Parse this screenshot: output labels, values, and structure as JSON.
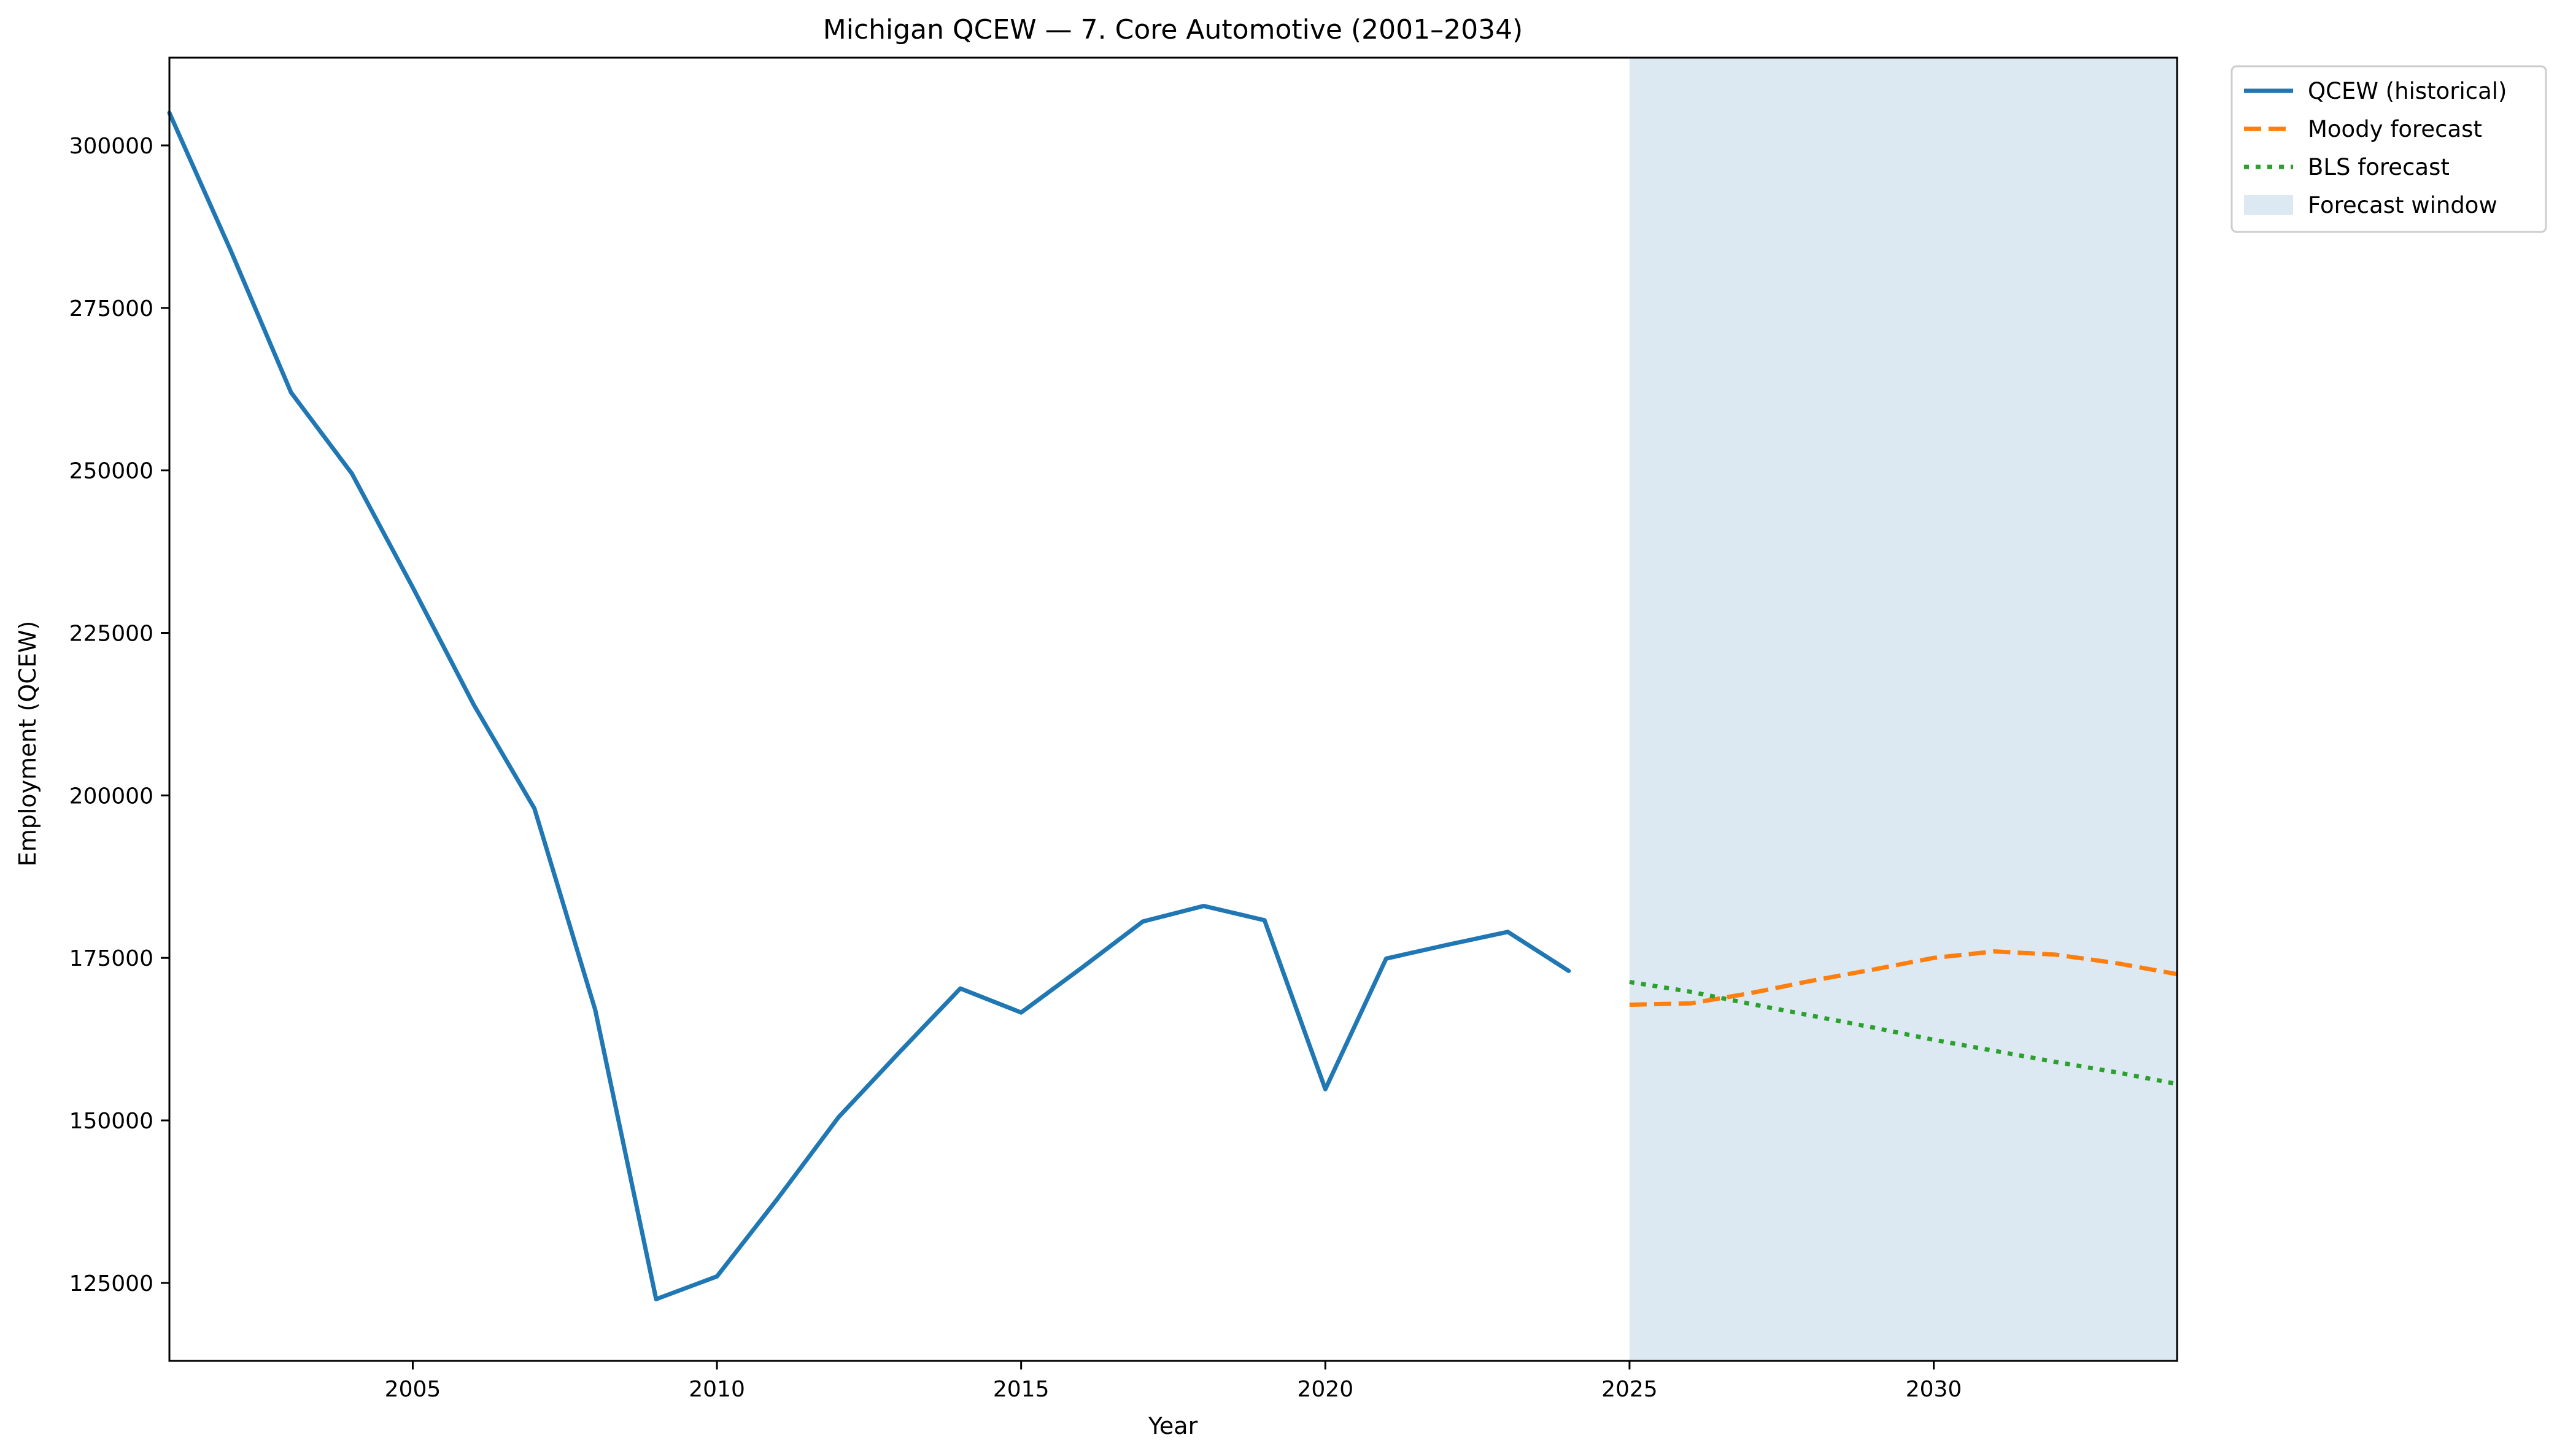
{
  "chart_data": {
    "type": "line",
    "title": "Michigan QCEW — 7. Core Automotive (2001–2034)",
    "xlabel": "Year",
    "ylabel": "Employment (QCEW)",
    "xlim": [
      2001,
      2034
    ],
    "ylim": [
      113000,
      313500
    ],
    "xticks": [
      2005,
      2010,
      2015,
      2020,
      2025,
      2030
    ],
    "yticks": [
      125000,
      150000,
      175000,
      200000,
      225000,
      250000,
      275000,
      300000
    ],
    "grid": false,
    "legend_position": "outside-top-right",
    "forecast_window": {
      "label": "Forecast window",
      "x_range": [
        2025,
        2034
      ],
      "color": "#dce9f2"
    },
    "series": [
      {
        "name": "QCEW (historical)",
        "style": "solid",
        "color": "#1f77b4",
        "x": [
          2001,
          2002,
          2003,
          2004,
          2005,
          2006,
          2007,
          2008,
          2009,
          2010,
          2011,
          2012,
          2013,
          2014,
          2015,
          2016,
          2017,
          2018,
          2019,
          2020,
          2021,
          2022,
          2023,
          2024
        ],
        "values": [
          305000,
          284000,
          262000,
          249500,
          232000,
          214000,
          198000,
          167000,
          122500,
          126000,
          138000,
          150500,
          160500,
          170300,
          166600,
          173500,
          180600,
          183000,
          180800,
          154800,
          174900,
          177000,
          179000,
          173000
        ]
      },
      {
        "name": "Moody forecast",
        "style": "dashed",
        "color": "#ff7f0e",
        "x": [
          2025,
          2026,
          2027,
          2028,
          2029,
          2030,
          2031,
          2032,
          2033,
          2034
        ],
        "values": [
          167800,
          168000,
          169600,
          171500,
          173200,
          175000,
          176000,
          175500,
          174200,
          172500
        ]
      },
      {
        "name": "BLS forecast",
        "style": "dotted",
        "color": "#2ca02c",
        "x": [
          2025,
          2026,
          2027,
          2028,
          2029,
          2030,
          2031,
          2032,
          2033,
          2034
        ],
        "values": [
          171300,
          169800,
          167900,
          166100,
          164300,
          162400,
          160700,
          159000,
          157400,
          155600
        ]
      }
    ]
  }
}
